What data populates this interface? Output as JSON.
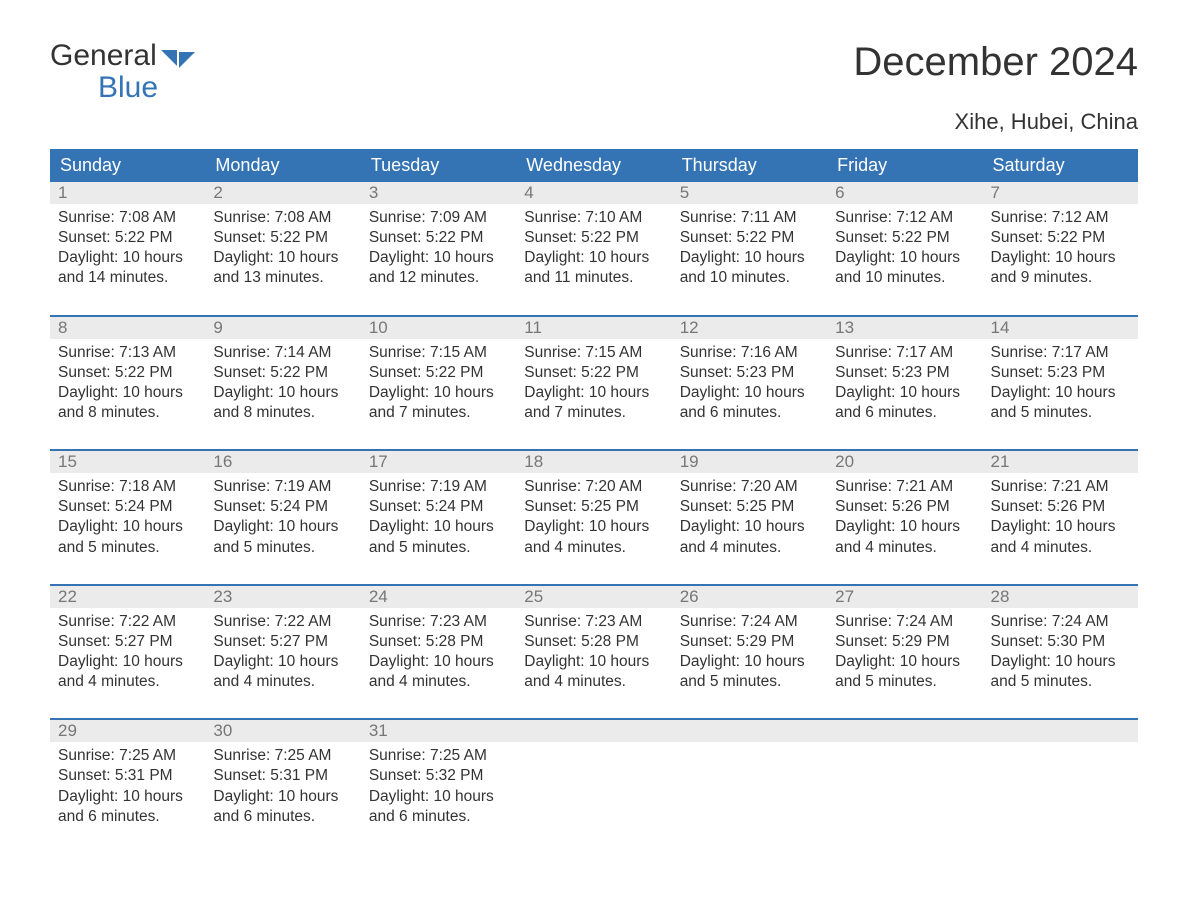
{
  "logo": {
    "text_general": "General",
    "text_blue": "Blue",
    "brand_color": "#3474b4"
  },
  "title": "December 2024",
  "subtitle": "Xihe, Hubei, China",
  "colors": {
    "header_bg": "#3474b4",
    "header_text": "#ffffff",
    "daynum_bg": "#ebebeb",
    "daynum_text": "#777777",
    "body_text": "#333333",
    "page_bg": "#ffffff",
    "week_border": "#3474b4"
  },
  "typography": {
    "title_fontsize": 40,
    "subtitle_fontsize": 22,
    "dayheader_fontsize": 18,
    "daynum_fontsize": 17,
    "cell_fontsize": 15.5,
    "font_family": "Arial, Helvetica, sans-serif"
  },
  "calendar": {
    "type": "table",
    "columns": [
      "Sunday",
      "Monday",
      "Tuesday",
      "Wednesday",
      "Thursday",
      "Friday",
      "Saturday"
    ],
    "weeks": [
      [
        {
          "day": "1",
          "sunrise": "Sunrise: 7:08 AM",
          "sunset": "Sunset: 5:22 PM",
          "daylight1": "Daylight: 10 hours",
          "daylight2": "and 14 minutes."
        },
        {
          "day": "2",
          "sunrise": "Sunrise: 7:08 AM",
          "sunset": "Sunset: 5:22 PM",
          "daylight1": "Daylight: 10 hours",
          "daylight2": "and 13 minutes."
        },
        {
          "day": "3",
          "sunrise": "Sunrise: 7:09 AM",
          "sunset": "Sunset: 5:22 PM",
          "daylight1": "Daylight: 10 hours",
          "daylight2": "and 12 minutes."
        },
        {
          "day": "4",
          "sunrise": "Sunrise: 7:10 AM",
          "sunset": "Sunset: 5:22 PM",
          "daylight1": "Daylight: 10 hours",
          "daylight2": "and 11 minutes."
        },
        {
          "day": "5",
          "sunrise": "Sunrise: 7:11 AM",
          "sunset": "Sunset: 5:22 PM",
          "daylight1": "Daylight: 10 hours",
          "daylight2": "and 10 minutes."
        },
        {
          "day": "6",
          "sunrise": "Sunrise: 7:12 AM",
          "sunset": "Sunset: 5:22 PM",
          "daylight1": "Daylight: 10 hours",
          "daylight2": "and 10 minutes."
        },
        {
          "day": "7",
          "sunrise": "Sunrise: 7:12 AM",
          "sunset": "Sunset: 5:22 PM",
          "daylight1": "Daylight: 10 hours",
          "daylight2": "and 9 minutes."
        }
      ],
      [
        {
          "day": "8",
          "sunrise": "Sunrise: 7:13 AM",
          "sunset": "Sunset: 5:22 PM",
          "daylight1": "Daylight: 10 hours",
          "daylight2": "and 8 minutes."
        },
        {
          "day": "9",
          "sunrise": "Sunrise: 7:14 AM",
          "sunset": "Sunset: 5:22 PM",
          "daylight1": "Daylight: 10 hours",
          "daylight2": "and 8 minutes."
        },
        {
          "day": "10",
          "sunrise": "Sunrise: 7:15 AM",
          "sunset": "Sunset: 5:22 PM",
          "daylight1": "Daylight: 10 hours",
          "daylight2": "and 7 minutes."
        },
        {
          "day": "11",
          "sunrise": "Sunrise: 7:15 AM",
          "sunset": "Sunset: 5:22 PM",
          "daylight1": "Daylight: 10 hours",
          "daylight2": "and 7 minutes."
        },
        {
          "day": "12",
          "sunrise": "Sunrise: 7:16 AM",
          "sunset": "Sunset: 5:23 PM",
          "daylight1": "Daylight: 10 hours",
          "daylight2": "and 6 minutes."
        },
        {
          "day": "13",
          "sunrise": "Sunrise: 7:17 AM",
          "sunset": "Sunset: 5:23 PM",
          "daylight1": "Daylight: 10 hours",
          "daylight2": "and 6 minutes."
        },
        {
          "day": "14",
          "sunrise": "Sunrise: 7:17 AM",
          "sunset": "Sunset: 5:23 PM",
          "daylight1": "Daylight: 10 hours",
          "daylight2": "and 5 minutes."
        }
      ],
      [
        {
          "day": "15",
          "sunrise": "Sunrise: 7:18 AM",
          "sunset": "Sunset: 5:24 PM",
          "daylight1": "Daylight: 10 hours",
          "daylight2": "and 5 minutes."
        },
        {
          "day": "16",
          "sunrise": "Sunrise: 7:19 AM",
          "sunset": "Sunset: 5:24 PM",
          "daylight1": "Daylight: 10 hours",
          "daylight2": "and 5 minutes."
        },
        {
          "day": "17",
          "sunrise": "Sunrise: 7:19 AM",
          "sunset": "Sunset: 5:24 PM",
          "daylight1": "Daylight: 10 hours",
          "daylight2": "and 5 minutes."
        },
        {
          "day": "18",
          "sunrise": "Sunrise: 7:20 AM",
          "sunset": "Sunset: 5:25 PM",
          "daylight1": "Daylight: 10 hours",
          "daylight2": "and 4 minutes."
        },
        {
          "day": "19",
          "sunrise": "Sunrise: 7:20 AM",
          "sunset": "Sunset: 5:25 PM",
          "daylight1": "Daylight: 10 hours",
          "daylight2": "and 4 minutes."
        },
        {
          "day": "20",
          "sunrise": "Sunrise: 7:21 AM",
          "sunset": "Sunset: 5:26 PM",
          "daylight1": "Daylight: 10 hours",
          "daylight2": "and 4 minutes."
        },
        {
          "day": "21",
          "sunrise": "Sunrise: 7:21 AM",
          "sunset": "Sunset: 5:26 PM",
          "daylight1": "Daylight: 10 hours",
          "daylight2": "and 4 minutes."
        }
      ],
      [
        {
          "day": "22",
          "sunrise": "Sunrise: 7:22 AM",
          "sunset": "Sunset: 5:27 PM",
          "daylight1": "Daylight: 10 hours",
          "daylight2": "and 4 minutes."
        },
        {
          "day": "23",
          "sunrise": "Sunrise: 7:22 AM",
          "sunset": "Sunset: 5:27 PM",
          "daylight1": "Daylight: 10 hours",
          "daylight2": "and 4 minutes."
        },
        {
          "day": "24",
          "sunrise": "Sunrise: 7:23 AM",
          "sunset": "Sunset: 5:28 PM",
          "daylight1": "Daylight: 10 hours",
          "daylight2": "and 4 minutes."
        },
        {
          "day": "25",
          "sunrise": "Sunrise: 7:23 AM",
          "sunset": "Sunset: 5:28 PM",
          "daylight1": "Daylight: 10 hours",
          "daylight2": "and 4 minutes."
        },
        {
          "day": "26",
          "sunrise": "Sunrise: 7:24 AM",
          "sunset": "Sunset: 5:29 PM",
          "daylight1": "Daylight: 10 hours",
          "daylight2": "and 5 minutes."
        },
        {
          "day": "27",
          "sunrise": "Sunrise: 7:24 AM",
          "sunset": "Sunset: 5:29 PM",
          "daylight1": "Daylight: 10 hours",
          "daylight2": "and 5 minutes."
        },
        {
          "day": "28",
          "sunrise": "Sunrise: 7:24 AM",
          "sunset": "Sunset: 5:30 PM",
          "daylight1": "Daylight: 10 hours",
          "daylight2": "and 5 minutes."
        }
      ],
      [
        {
          "day": "29",
          "sunrise": "Sunrise: 7:25 AM",
          "sunset": "Sunset: 5:31 PM",
          "daylight1": "Daylight: 10 hours",
          "daylight2": "and 6 minutes."
        },
        {
          "day": "30",
          "sunrise": "Sunrise: 7:25 AM",
          "sunset": "Sunset: 5:31 PM",
          "daylight1": "Daylight: 10 hours",
          "daylight2": "and 6 minutes."
        },
        {
          "day": "31",
          "sunrise": "Sunrise: 7:25 AM",
          "sunset": "Sunset: 5:32 PM",
          "daylight1": "Daylight: 10 hours",
          "daylight2": "and 6 minutes."
        },
        null,
        null,
        null,
        null
      ]
    ]
  }
}
